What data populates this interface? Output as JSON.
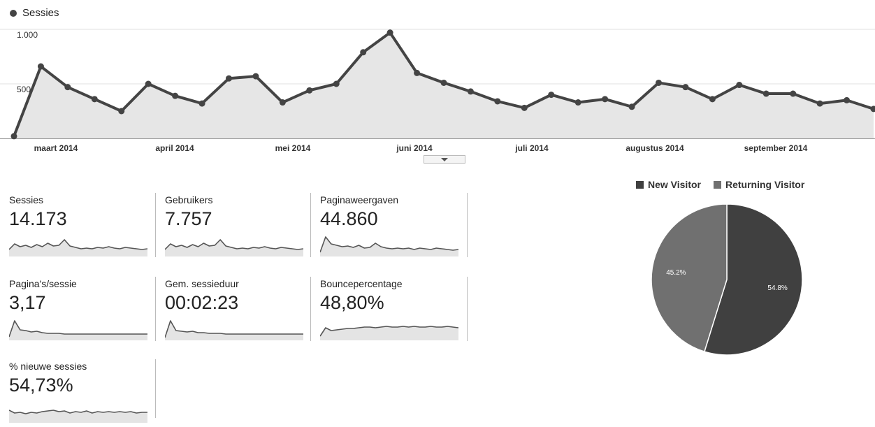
{
  "chart_data": [
    {
      "type": "area",
      "title": "",
      "series": [
        {
          "name": "Sessies",
          "values": [
            20,
            660,
            470,
            360,
            250,
            500,
            390,
            320,
            550,
            570,
            330,
            440,
            500,
            790,
            970,
            600,
            510,
            430,
            340,
            280,
            400,
            330,
            360,
            290,
            510,
            470,
            360,
            490,
            410,
            410,
            320,
            350,
            270
          ]
        }
      ],
      "ylim": [
        0,
        1000
      ],
      "y_ticks": [
        "500",
        "1.000"
      ],
      "x_ticks": [
        "maart 2014",
        "april 2014",
        "mei 2014",
        "juni 2014",
        "juli 2014",
        "augustus 2014",
        "september 2014"
      ],
      "grid": true,
      "color": "#444444",
      "fill": "#e6e6e6"
    },
    {
      "type": "pie",
      "slices": [
        {
          "label": "New Visitor",
          "value": 54.8,
          "text": "54.8%",
          "color": "#404040"
        },
        {
          "label": "Returning Visitor",
          "value": 45.2,
          "text": "45.2%",
          "color": "#707070"
        }
      ],
      "legend": "top"
    }
  ],
  "metrics": [
    {
      "label": "Sessies",
      "value": "14.173",
      "spark": [
        10,
        18,
        14,
        16,
        13,
        17,
        14,
        19,
        15,
        16,
        24,
        15,
        13,
        11,
        12,
        11,
        13,
        12,
        14,
        12,
        11,
        13,
        12,
        11,
        10,
        11
      ]
    },
    {
      "label": "Gebruikers",
      "value": "7.757",
      "spark": [
        10,
        18,
        14,
        16,
        13,
        17,
        14,
        19,
        15,
        16,
        24,
        15,
        13,
        11,
        12,
        11,
        13,
        12,
        14,
        12,
        11,
        13,
        12,
        11,
        10,
        11
      ]
    },
    {
      "label": "Paginaweergaven",
      "value": "44.860",
      "spark": [
        6,
        28,
        18,
        16,
        14,
        15,
        13,
        16,
        12,
        13,
        19,
        14,
        12,
        11,
        12,
        11,
        12,
        10,
        12,
        11,
        10,
        12,
        11,
        10,
        9,
        10
      ]
    },
    {
      "label": "Pagina's/sessie",
      "value": "3,17",
      "spark": [
        5,
        28,
        15,
        14,
        12,
        13,
        11,
        10,
        10,
        10,
        9,
        9,
        9,
        9,
        9,
        9,
        9,
        9,
        9,
        9,
        9,
        9,
        9,
        9,
        9,
        9
      ]
    },
    {
      "label": "Gem. sessieduur",
      "value": "00:02:23",
      "spark": [
        4,
        28,
        14,
        13,
        12,
        13,
        11,
        11,
        10,
        10,
        10,
        9,
        9,
        9,
        9,
        9,
        9,
        9,
        9,
        9,
        9,
        9,
        9,
        9,
        9,
        9
      ]
    },
    {
      "label": "Bouncepercentage",
      "value": "48,80%",
      "spark": [
        6,
        18,
        14,
        15,
        16,
        17,
        17,
        18,
        19,
        19,
        18,
        19,
        20,
        19,
        19,
        20,
        19,
        20,
        19,
        19,
        20,
        19,
        19,
        20,
        19,
        18
      ]
    },
    {
      "label": "% nieuwe sessies",
      "value": "54,73%",
      "spark": [
        18,
        14,
        15,
        13,
        15,
        14,
        16,
        17,
        18,
        16,
        17,
        14,
        16,
        15,
        17,
        14,
        16,
        15,
        16,
        15,
        16,
        15,
        16,
        14,
        15,
        15
      ]
    }
  ]
}
